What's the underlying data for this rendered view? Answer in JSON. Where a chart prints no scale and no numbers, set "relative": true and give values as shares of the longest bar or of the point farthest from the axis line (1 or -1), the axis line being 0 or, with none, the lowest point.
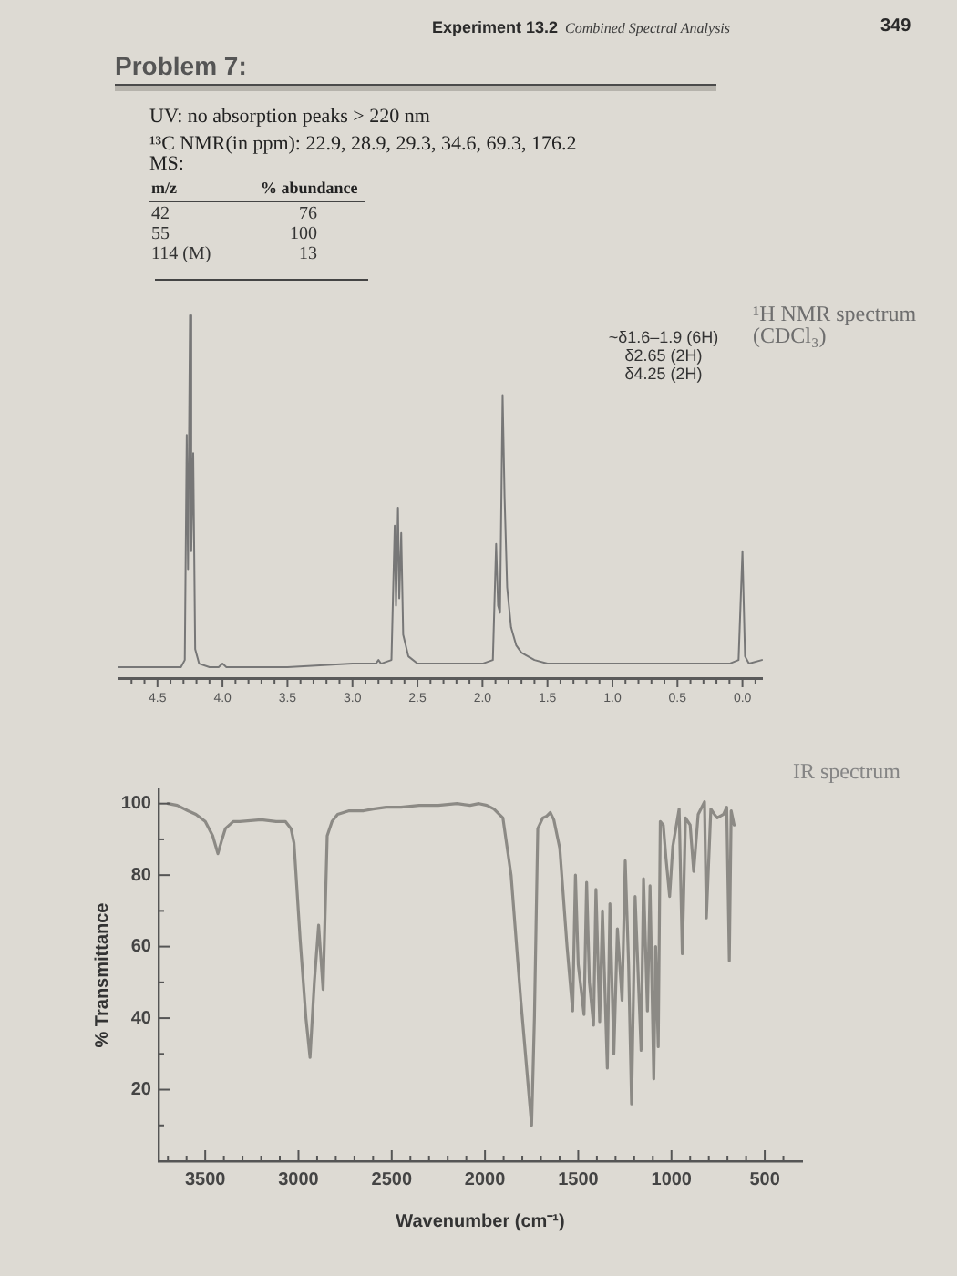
{
  "chart_data": [
    {
      "type": "other",
      "title": "Experiment 13.2",
      "subtitle": "Combined Spectral Analysis",
      "annotations": [
        "349"
      ]
    },
    {
      "type": "other",
      "title": "Problem 7:",
      "annotations": [
        "UV: no absorption peaks > 220 nm",
        "¹³C NMR(in ppm): 22.9, 28.9, 29.3, 34.6, 69.3, 176.2",
        "MS:"
      ],
      "xlabel": "m/z",
      "ylabel": "% abundance",
      "categories": [
        "42",
        "55",
        "114 (M)"
      ],
      "values": [
        76,
        100,
        13
      ],
      "data_labels": true
    },
    {
      "type": "line",
      "title": "¹H NMR spectrum",
      "subtitle": "(CDCl₃)",
      "annotations": [
        "~δ1.6–1.9 (6H)",
        "δ2.65 (2H)",
        "δ4.25 (2H)"
      ],
      "relative": true,
      "color": "#777777",
      "x": [
        4.8,
        4.6,
        4.4,
        4.32,
        4.29,
        4.275,
        4.265,
        4.25,
        4.24,
        4.225,
        4.21,
        4.18,
        4.1,
        4.03,
        4.0,
        3.97,
        3.5,
        3.0,
        2.82,
        2.8,
        2.78,
        2.7,
        2.675,
        2.665,
        2.65,
        2.64,
        2.625,
        2.61,
        2.57,
        2.5,
        2.4,
        2.0,
        1.92,
        1.895,
        1.88,
        1.865,
        1.845,
        1.83,
        1.81,
        1.78,
        1.74,
        1.7,
        1.6,
        1.5,
        1.4,
        1.0,
        0.5,
        0.1,
        0.03,
        0.0,
        -0.02,
        -0.05,
        -0.15
      ],
      "values": [
        0.03,
        0.03,
        0.03,
        0.03,
        0.05,
        0.67,
        0.3,
        1,
        0.35,
        0.62,
        0.08,
        0.04,
        0.03,
        0.03,
        0.04,
        0.03,
        0.03,
        0.04,
        0.04,
        0.05,
        0.04,
        0.05,
        0.42,
        0.2,
        0.47,
        0.22,
        0.4,
        0.12,
        0.06,
        0.04,
        0.04,
        0.04,
        0.05,
        0.37,
        0.2,
        0.18,
        0.78,
        0.5,
        0.25,
        0.14,
        0.09,
        0.07,
        0.05,
        0.04,
        0.04,
        0.04,
        0.04,
        0.04,
        0.05,
        0.35,
        0.06,
        0.04,
        0.05
      ],
      "xlim": [
        4.8,
        -0.15
      ],
      "xticks": [
        {
          "value": 4.7,
          "label": null
        },
        {
          "value": 4.6,
          "label": null
        },
        4.5,
        {
          "value": 4.4,
          "label": null
        },
        {
          "value": 4.3,
          "label": null
        },
        {
          "value": 4.2,
          "label": null
        },
        {
          "value": 4.1,
          "label": null
        },
        {
          "value": 4,
          "label": "4.0"
        },
        {
          "value": 3.9,
          "label": null
        },
        {
          "value": 3.8,
          "label": null
        },
        {
          "value": 3.7,
          "label": null
        },
        {
          "value": 3.6,
          "label": null
        },
        3.5,
        {
          "value": 3.4,
          "label": null
        },
        {
          "value": 3.3,
          "label": null
        },
        {
          "value": 3.2,
          "label": null
        },
        {
          "value": 3.1,
          "label": null
        },
        {
          "value": 3,
          "label": "3.0"
        },
        {
          "value": 2.9,
          "label": null
        },
        {
          "value": 2.8,
          "label": null
        },
        {
          "value": 2.7,
          "label": null
        },
        {
          "value": 2.6,
          "label": null
        },
        2.5,
        {
          "value": 2.4,
          "label": null
        },
        {
          "value": 2.3,
          "label": null
        },
        {
          "value": 2.2,
          "label": null
        },
        {
          "value": 2.1,
          "label": null
        },
        {
          "value": 2,
          "label": "2.0"
        },
        {
          "value": 1.9,
          "label": null
        },
        {
          "value": 1.8,
          "label": null
        },
        {
          "value": 1.7,
          "label": null
        },
        {
          "value": 1.6,
          "label": null
        },
        1.5,
        {
          "value": 1.4,
          "label": null
        },
        {
          "value": 1.3,
          "label": null
        },
        {
          "value": 1.2,
          "label": null
        },
        {
          "value": 1.1,
          "label": null
        },
        {
          "value": 1,
          "label": "1.0"
        },
        {
          "value": 0.9,
          "label": null
        },
        {
          "value": 0.8,
          "label": null
        },
        {
          "value": 0.7,
          "label": null
        },
        {
          "value": 0.6,
          "label": null
        },
        0.5,
        {
          "value": 0.4,
          "label": null
        },
        {
          "value": 0.3,
          "label": null
        },
        {
          "value": 0.2,
          "label": null
        },
        {
          "value": 0.1,
          "label": null
        },
        {
          "value": 0,
          "label": "0.0"
        },
        {
          "value": -0.1,
          "label": null
        }
      ]
    },
    {
      "type": "line",
      "title": "IR spectrum",
      "xlabel": "Wavenumber (cm⁻¹)",
      "ylabel": "% Transmittance",
      "color": "#8c8a85",
      "x": [
        3700,
        3650,
        3593,
        3550,
        3500,
        3460,
        3432,
        3410,
        3392,
        3350,
        3315,
        3200,
        3120,
        3070,
        3040,
        3024,
        2991,
        2960,
        2938,
        2915,
        2892,
        2868,
        2846,
        2820,
        2790,
        2728,
        2650,
        2600,
        2530,
        2450,
        2353,
        2250,
        2150,
        2080,
        2032,
        1990,
        1952,
        1904,
        1860,
        1808,
        1750,
        1735,
        1717,
        1690,
        1669,
        1650,
        1631,
        1599,
        1560,
        1530,
        1515,
        1500,
        1469,
        1455,
        1440,
        1418,
        1405,
        1385,
        1370,
        1344,
        1330,
        1309,
        1290,
        1265,
        1248,
        1230,
        1214,
        1195,
        1163,
        1150,
        1129,
        1115,
        1095,
        1085,
        1071,
        1060,
        1044,
        1030,
        1010,
        993,
        959,
        942,
        925,
        900,
        881,
        857,
        823,
        813,
        789,
        770,
        755,
        721,
        704,
        690,
        680,
        664
      ],
      "values": [
        100,
        99.5,
        98,
        97,
        95,
        91,
        86,
        90,
        93,
        95,
        95,
        95.5,
        95,
        95,
        93,
        89,
        62,
        40,
        29,
        50,
        66,
        48,
        91,
        95,
        97,
        98,
        98,
        98.5,
        99,
        99,
        99.5,
        99.5,
        100,
        99.5,
        100,
        99.5,
        98.5,
        96,
        80,
        45,
        10,
        40,
        93,
        96,
        96.5,
        97.5,
        95.5,
        87.5,
        60,
        42,
        80,
        55,
        41,
        78,
        50,
        38,
        76,
        39,
        70,
        26,
        72,
        30,
        65,
        45,
        84,
        55,
        16,
        74,
        31,
        79,
        42,
        77,
        23,
        60,
        32,
        95,
        94,
        85,
        74,
        88,
        98.5,
        58,
        96,
        94,
        81,
        97,
        100.5,
        68,
        98.5,
        97,
        96,
        97,
        99,
        56,
        98,
        94
      ],
      "xlim": [
        3750,
        300
      ],
      "xticks": [
        {
          "value": 3700,
          "label": null
        },
        {
          "value": 3600,
          "label": null
        },
        3500,
        {
          "value": 3400,
          "label": null
        },
        {
          "value": 3300,
          "label": null
        },
        {
          "value": 3200,
          "label": null
        },
        {
          "value": 3100,
          "label": null
        },
        3000,
        {
          "value": 2900,
          "label": null
        },
        {
          "value": 2800,
          "label": null
        },
        {
          "value": 2700,
          "label": null
        },
        {
          "value": 2600,
          "label": null
        },
        2500,
        {
          "value": 2400,
          "label": null
        },
        {
          "value": 2300,
          "label": null
        },
        {
          "value": 2200,
          "label": null
        },
        {
          "value": 2100,
          "label": null
        },
        2000,
        {
          "value": 1900,
          "label": null
        },
        {
          "value": 1800,
          "label": null
        },
        {
          "value": 1700,
          "label": null
        },
        {
          "value": 1600,
          "label": null
        },
        1500,
        {
          "value": 1400,
          "label": null
        },
        {
          "value": 1300,
          "label": null
        },
        {
          "value": 1200,
          "label": null
        },
        {
          "value": 1100,
          "label": null
        },
        1000,
        {
          "value": 900,
          "label": null
        },
        {
          "value": 800,
          "label": null
        },
        {
          "value": 700,
          "label": null
        },
        {
          "value": 600,
          "label": null
        },
        500,
        {
          "value": 400,
          "label": null
        }
      ],
      "ylim": [
        0,
        104
      ],
      "yticks": [
        {
          "value": 10,
          "label": null
        },
        20,
        {
          "value": 30,
          "label": null
        },
        40,
        {
          "value": 50,
          "label": null
        },
        60,
        {
          "value": 70,
          "label": null
        },
        80,
        {
          "value": 90,
          "label": null
        },
        100
      ]
    }
  ]
}
